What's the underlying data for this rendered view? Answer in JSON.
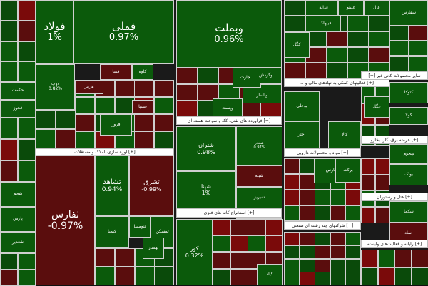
{
  "chart_data": {
    "type": "treemap",
    "colors": {
      "positive": "#0b5a0b",
      "positive_dark": "#0a4a0a",
      "negative": "#5a0d0d",
      "negative_strong": "#7a0a0a"
    },
    "sectors": [
      {
        "name": "[+] اوره سازی، املاک و مستغلات",
        "dir": "rtl"
      },
      {
        "name": "[+] فرآورده های نفتی، کک و سوخت هسته ای",
        "dir": "rtl"
      },
      {
        "name": "[+] محصولات شیمیایی",
        "dir": "rtl"
      },
      {
        "name": "[+] استخراج کانه های فلزی",
        "dir": "rtl"
      },
      {
        "name": "[+] مواد و محصولات دارویی",
        "dir": "rtl"
      },
      {
        "name": "[+] شرکتهای چند رشته ای صنعتی",
        "dir": "rtl"
      },
      {
        "name": "[+] فعالیتهای کمکی به نهادهای مالی و ...",
        "dir": "rtl"
      },
      {
        "name": "سایر محصولات کانی غیر [+]",
        "dir": "rtl"
      },
      {
        "name": "[+] عرضه برق، گاز، بخارو",
        "dir": "rtl"
      },
      {
        "name": "[+] هتل و رستوران",
        "dir": "rtl"
      },
      {
        "name": "[+] رایانه و فعالیت‌های وابسته",
        "dir": "rtl"
      }
    ],
    "tiles": [
      {
        "name": "فولاد",
        "change": "1%",
        "trend": "up"
      },
      {
        "name": "فملی",
        "change": "0.97%",
        "trend": "up"
      },
      {
        "name": "وبملت",
        "change": "0.96%",
        "trend": "up"
      },
      {
        "name": "ثفارس",
        "change": "-0.97%",
        "trend": "down"
      },
      {
        "name": "ثشاهد",
        "change": "0.94%",
        "trend": "up"
      },
      {
        "name": "ثشرق",
        "change": "-0.99%",
        "trend": "down"
      },
      {
        "name": "شتران",
        "change": "0.98%",
        "trend": "up"
      },
      {
        "name": "شپنا",
        "change": "1%",
        "trend": "up"
      },
      {
        "name": "کور",
        "change": "0.32%",
        "trend": "up"
      },
      {
        "name": "ذوب",
        "change": "0.82%",
        "trend": "up"
      },
      {
        "name": "شبندر",
        "change": "0.97%",
        "trend": "up"
      },
      {
        "name": "کگل",
        "change": "",
        "trend": "up"
      },
      {
        "name": "سفارس",
        "change": "",
        "trend": "up"
      },
      {
        "name": "عدانه",
        "change": "",
        "trend": "up"
      },
      {
        "name": "عبینو",
        "change": "",
        "trend": "up"
      },
      {
        "name": "عال",
        "change": "",
        "trend": "up"
      },
      {
        "name": "فیبهاک",
        "change": "",
        "trend": "up"
      },
      {
        "name": "بوعلی",
        "change": "",
        "trend": "up"
      },
      {
        "name": "اختر",
        "change": "",
        "trend": "up"
      },
      {
        "name": "دیارس",
        "change": "",
        "trend": "up"
      },
      {
        "name": "برکت",
        "change": "",
        "trend": "up"
      },
      {
        "name": "کالا",
        "change": "",
        "trend": "up"
      },
      {
        "name": "ونجارت",
        "change": "",
        "trend": "up"
      },
      {
        "name": "وگردش",
        "change": "",
        "trend": "up"
      },
      {
        "name": "وپاسار",
        "change": "",
        "trend": "up"
      },
      {
        "name": "وپست",
        "change": "",
        "trend": "up"
      },
      {
        "name": "شبنه",
        "change": "",
        "trend": "down"
      },
      {
        "name": "شبریز",
        "change": "",
        "trend": "up"
      },
      {
        "name": "کاوه",
        "change": "",
        "trend": "up"
      },
      {
        "name": "فیتنا",
        "change": "",
        "trend": "down"
      },
      {
        "name": "هرمز",
        "change": "",
        "trend": "down"
      },
      {
        "name": "فسپا",
        "change": "",
        "trend": "down"
      },
      {
        "name": "فروز",
        "change": "",
        "trend": "down"
      },
      {
        "name": "کیمیا",
        "change": "",
        "trend": "up"
      },
      {
        "name": "تنومسا",
        "change": "",
        "trend": "up"
      },
      {
        "name": "تمسکن",
        "change": "",
        "trend": "up"
      },
      {
        "name": "تهساز",
        "change": "",
        "trend": "up"
      },
      {
        "name": "سکما",
        "change": "",
        "trend": "up"
      },
      {
        "name": "شجم",
        "change": "",
        "trend": "up"
      },
      {
        "name": "پارس",
        "change": "",
        "trend": "up"
      },
      {
        "name": "بهجوم",
        "change": "",
        "trend": "up"
      },
      {
        "name": "بوتک",
        "change": "",
        "trend": "up"
      },
      {
        "name": "کتوکا",
        "change": "",
        "trend": "up"
      },
      {
        "name": "غگل",
        "change": "",
        "trend": "up"
      },
      {
        "name": "آساد",
        "change": "",
        "trend": "up"
      },
      {
        "name": "کولا",
        "change": "",
        "trend": "up"
      },
      {
        "name": "شغدیر",
        "change": "",
        "trend": "up"
      },
      {
        "name": "حکمت",
        "change": "",
        "trend": "up"
      },
      {
        "name": "فخوز",
        "change": "",
        "trend": "up"
      },
      {
        "name": "کیاد",
        "change": "",
        "trend": "up"
      }
    ]
  }
}
